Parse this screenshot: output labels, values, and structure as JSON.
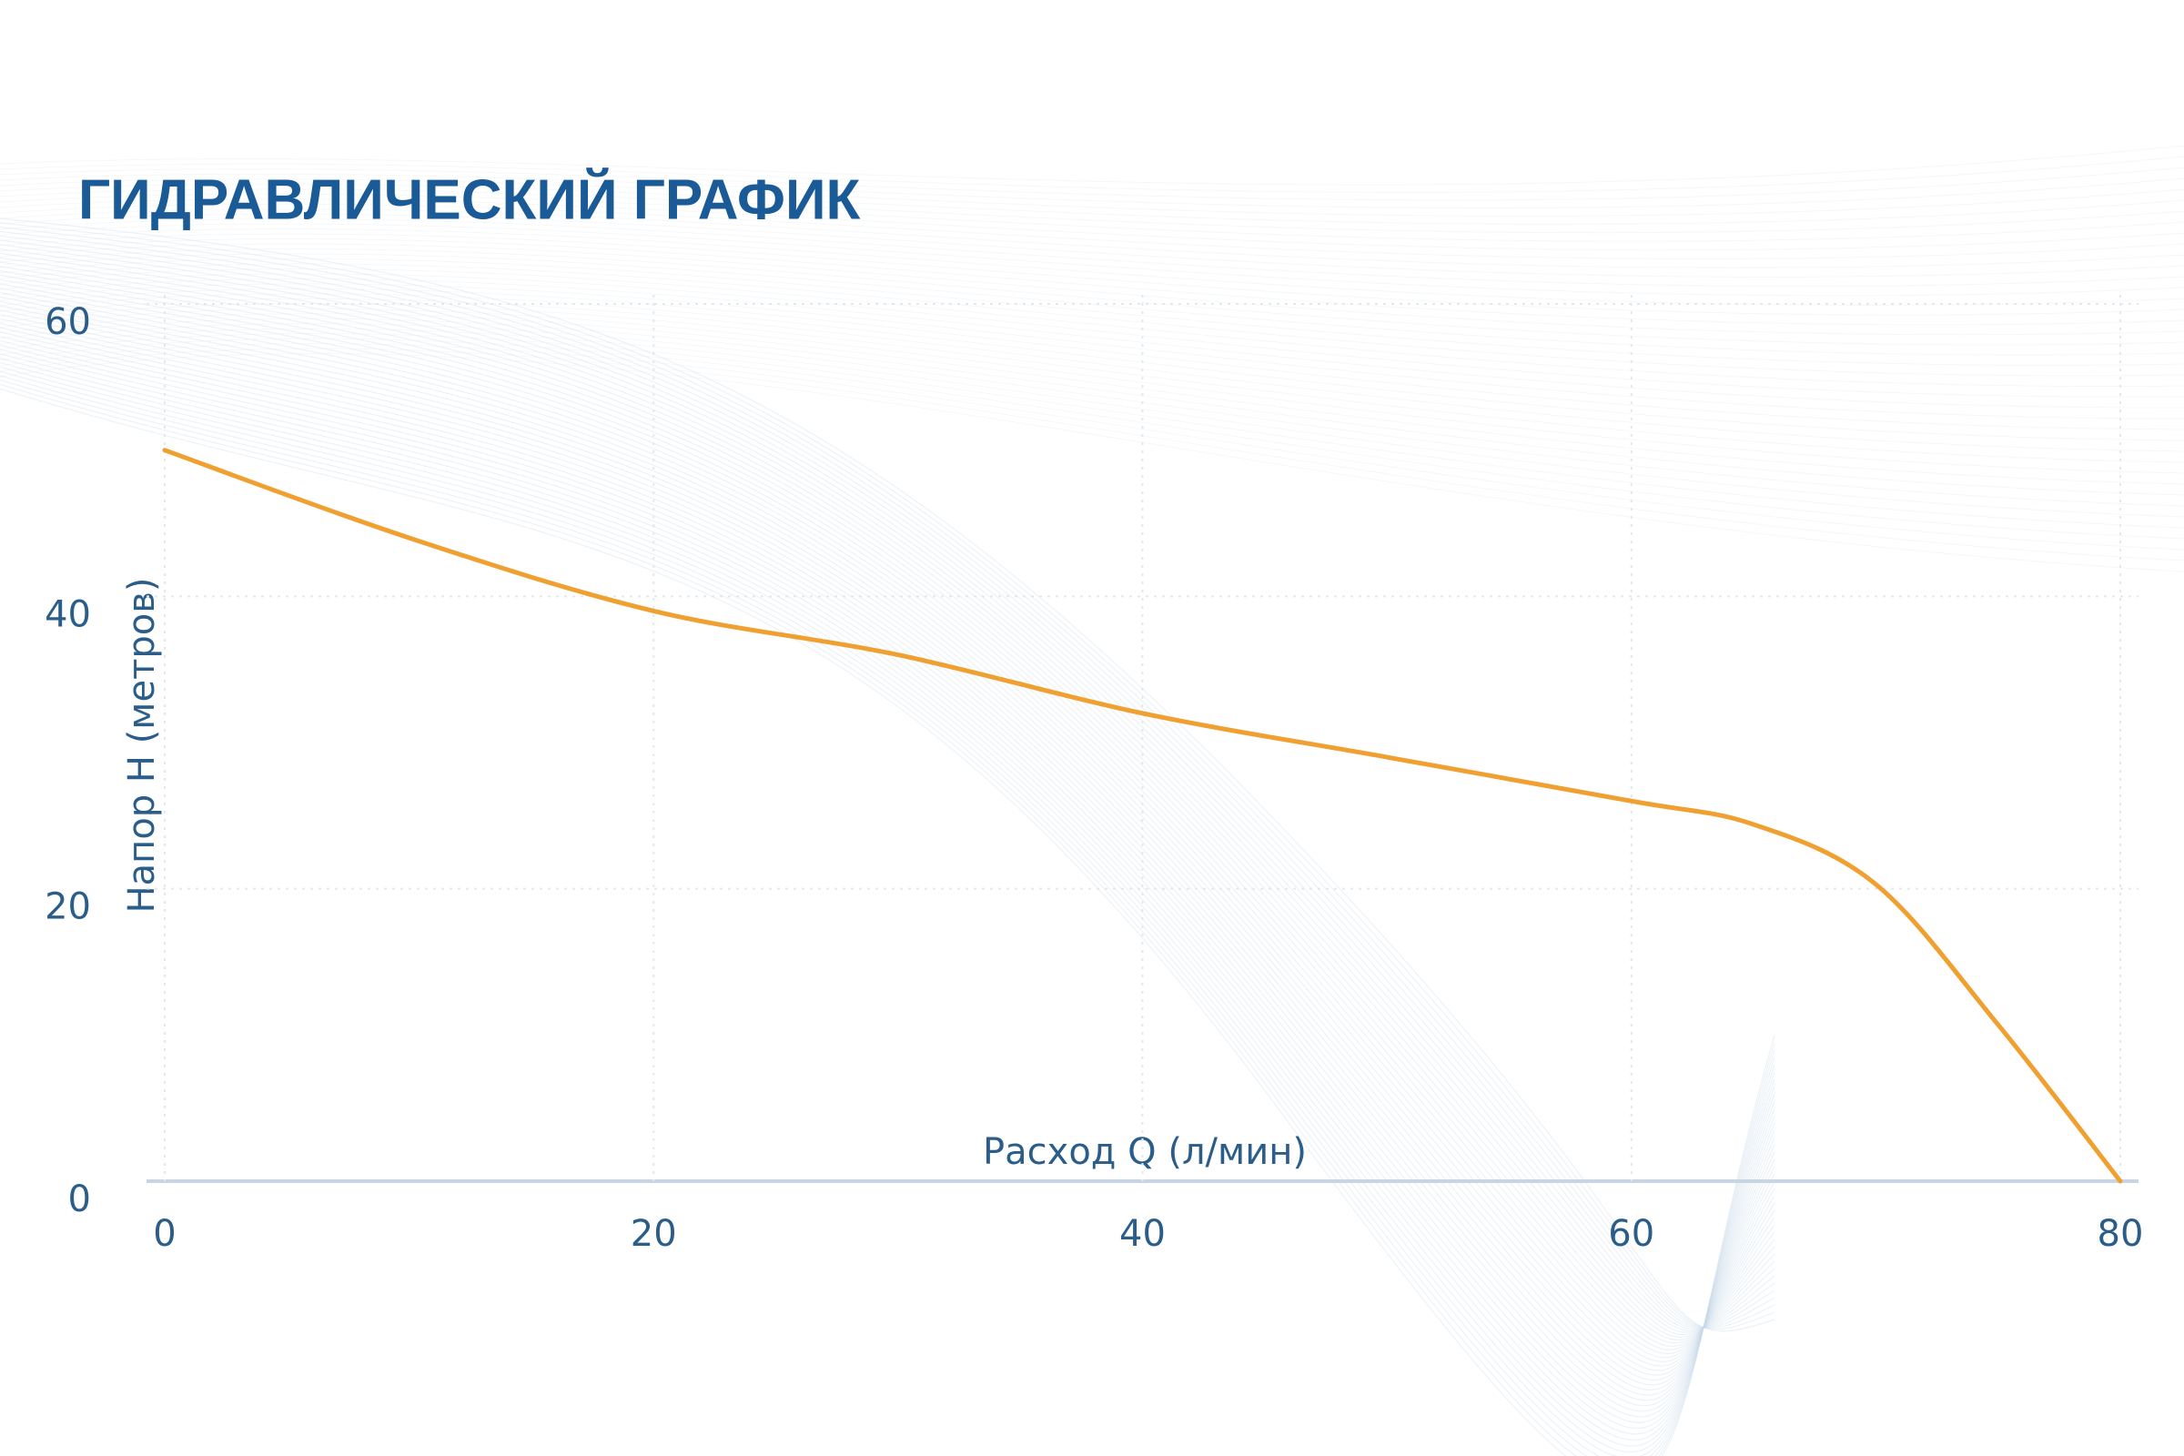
{
  "chart_data": {
    "type": "line",
    "title": "ГИДРАВЛИЧЕСКИЙ ГРАФИК",
    "x_label": "Расход Q (л/мин)",
    "y_label": "Напор H (метров)",
    "x": [
      0,
      10,
      20,
      30,
      40,
      50,
      60,
      65,
      70,
      75,
      80
    ],
    "series": [
      {
        "color": "#f0a030",
        "values": [
          50,
          44,
          39,
          36,
          32,
          29,
          26,
          24.4,
          20.3,
          10.7,
          0
        ]
      }
    ],
    "xlim": [
      0,
      80
    ],
    "xticks": [
      0,
      20,
      40,
      60,
      80
    ],
    "ylim": [
      0,
      60
    ],
    "yticks": [
      0,
      20,
      40,
      60
    ],
    "grid": true
  }
}
